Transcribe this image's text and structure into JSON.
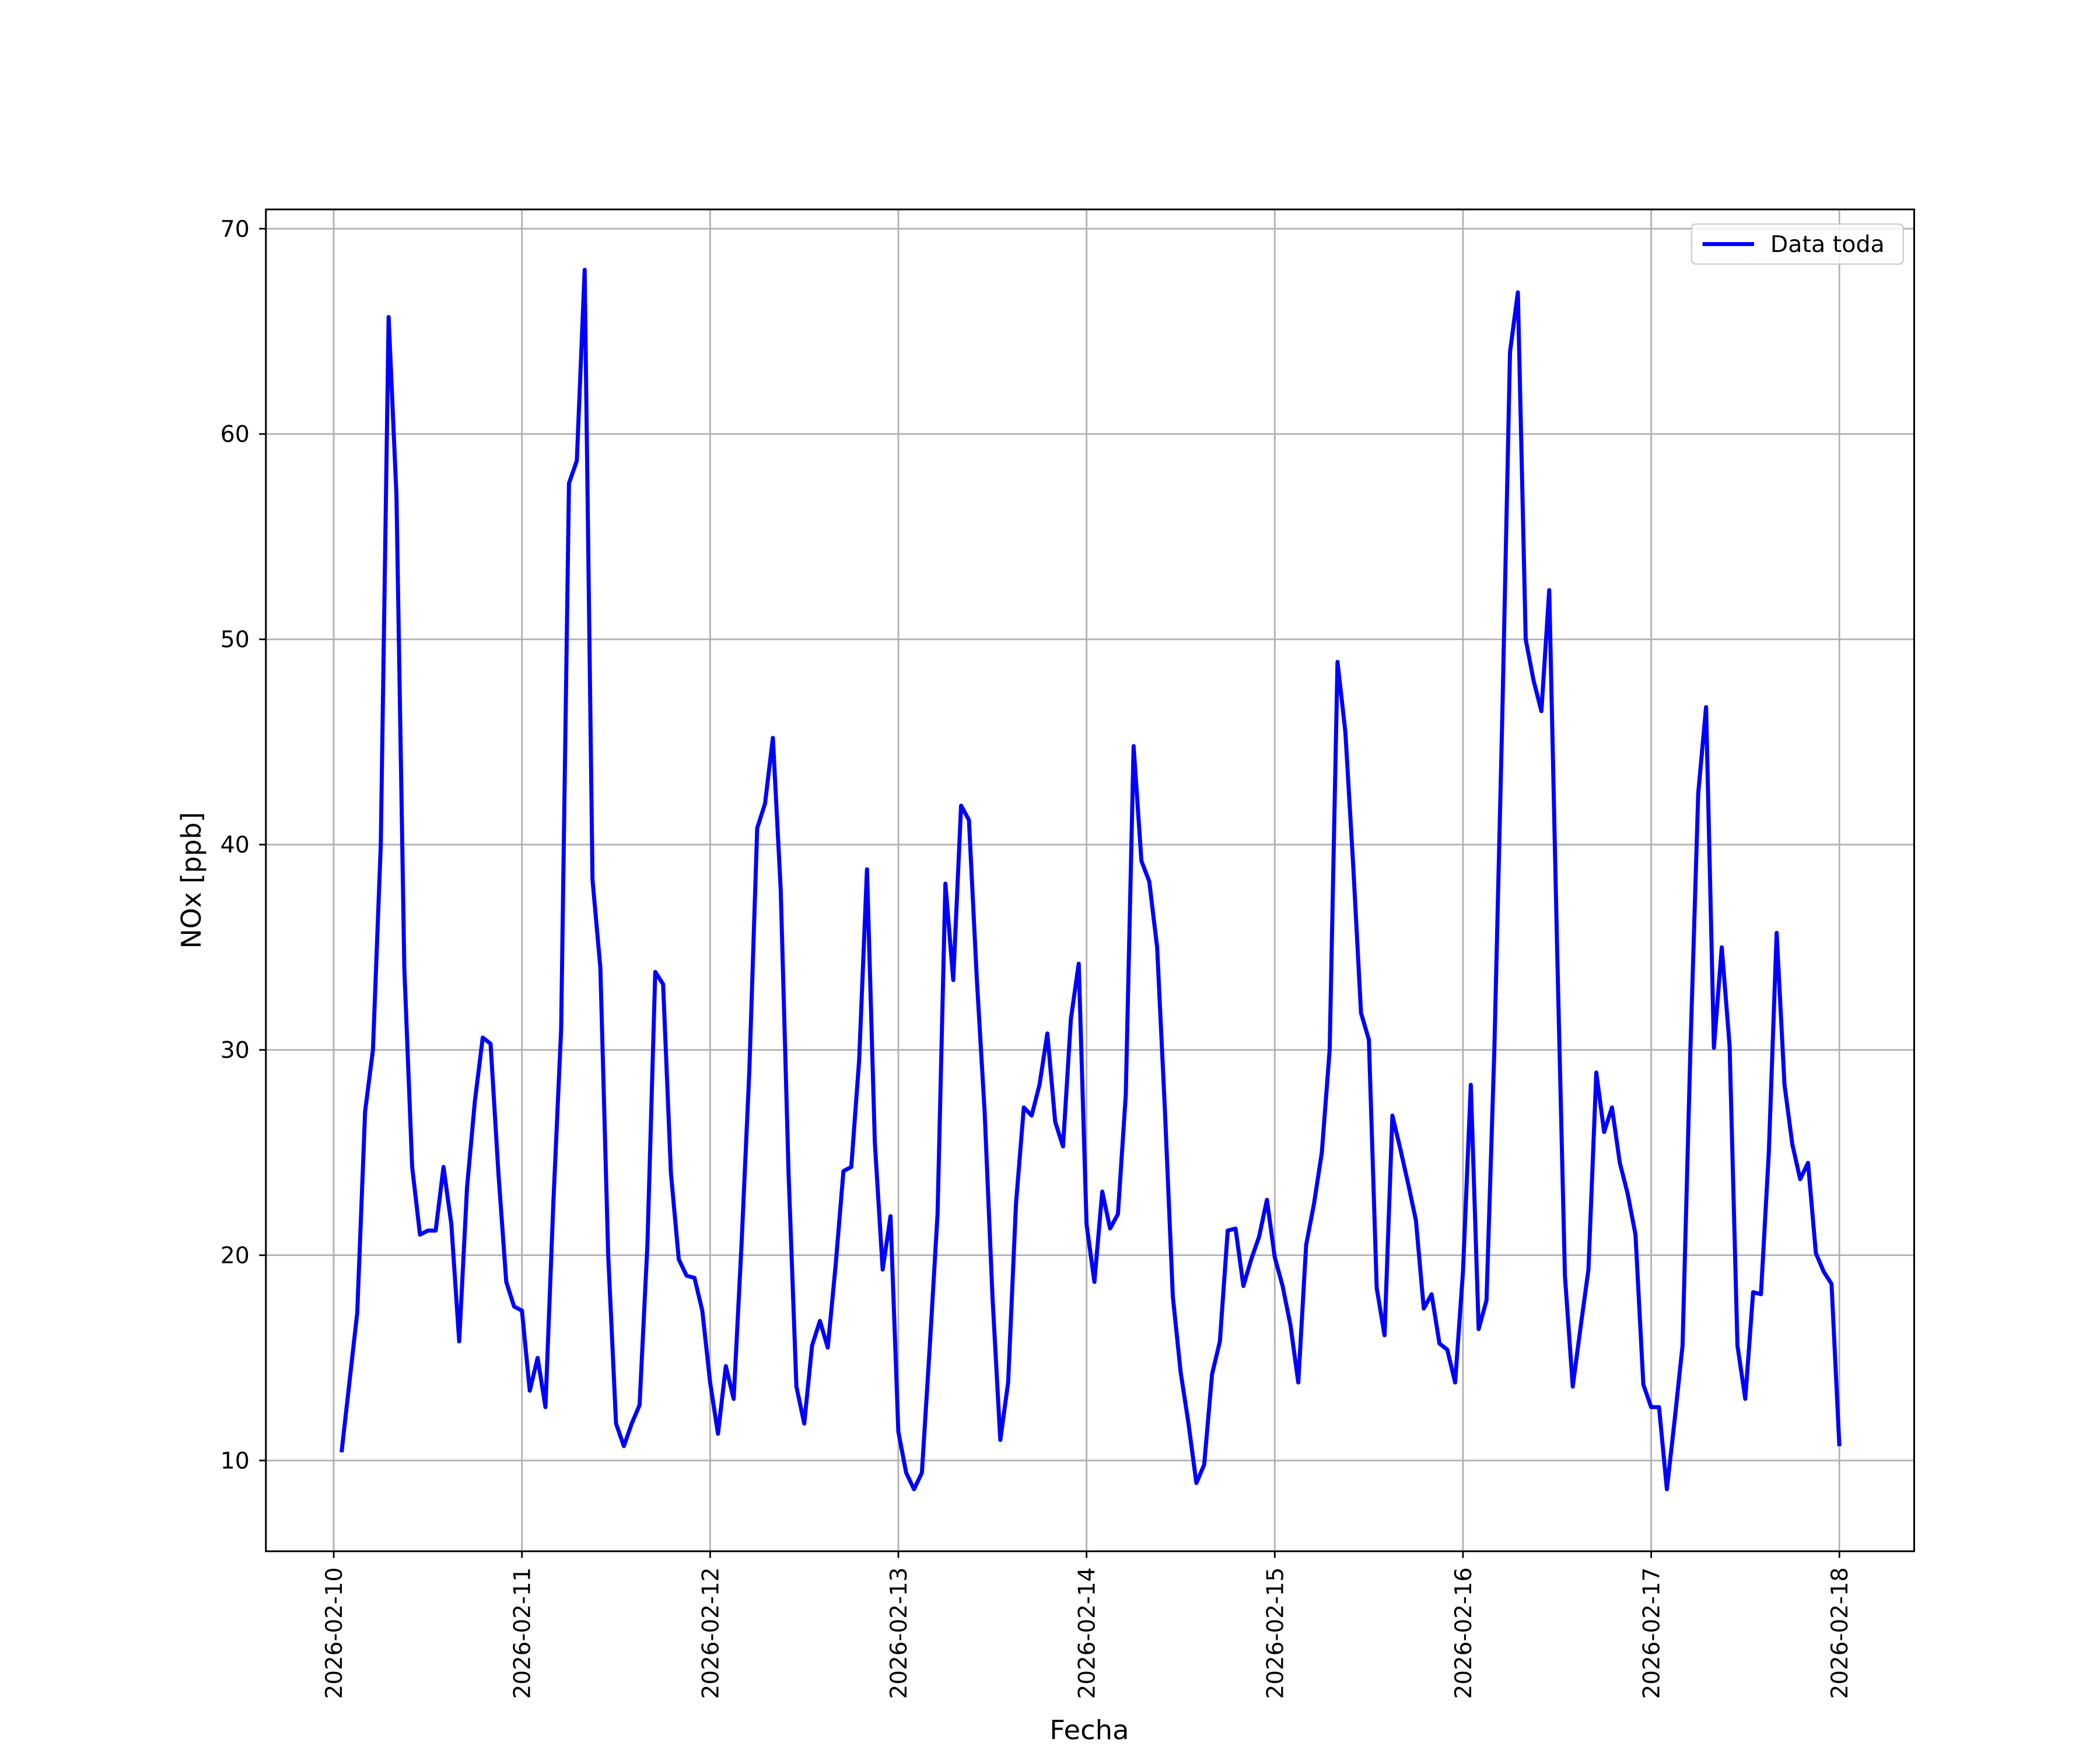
{
  "chart_data": {
    "type": "line",
    "xlabel": "Fecha",
    "ylabel": "NOx [ppb]",
    "legend": "upper right",
    "grid": true,
    "xlim": [
      "2026-02-09T15:21",
      "2026-02-18T09:32"
    ],
    "ylim": [
      5.58,
      70.94
    ],
    "yticks": [
      10,
      20,
      30,
      40,
      50,
      60,
      70
    ],
    "xticks": [
      "2026-02-10",
      "2026-02-11",
      "2026-02-12",
      "2026-02-13",
      "2026-02-14",
      "2026-02-15",
      "2026-02-16",
      "2026-02-17",
      "2026-02-18"
    ],
    "x": [
      "2026-02-10T01:00",
      "2026-02-10T02:00",
      "2026-02-10T03:00",
      "2026-02-10T04:00",
      "2026-02-10T05:00",
      "2026-02-10T06:00",
      "2026-02-10T07:00",
      "2026-02-10T08:00",
      "2026-02-10T09:00",
      "2026-02-10T10:00",
      "2026-02-10T11:00",
      "2026-02-10T12:00",
      "2026-02-10T13:00",
      "2026-02-10T14:00",
      "2026-02-10T15:00",
      "2026-02-10T16:00",
      "2026-02-10T17:00",
      "2026-02-10T18:00",
      "2026-02-10T19:00",
      "2026-02-10T20:00",
      "2026-02-10T21:00",
      "2026-02-10T22:00",
      "2026-02-10T23:00",
      "2026-02-11T00:00",
      "2026-02-11T01:00",
      "2026-02-11T02:00",
      "2026-02-11T03:00",
      "2026-02-11T04:00",
      "2026-02-11T05:00",
      "2026-02-11T06:00",
      "2026-02-11T07:00",
      "2026-02-11T08:00",
      "2026-02-11T09:00",
      "2026-02-11T10:00",
      "2026-02-11T11:00",
      "2026-02-11T12:00",
      "2026-02-11T13:00",
      "2026-02-11T14:00",
      "2026-02-11T15:00",
      "2026-02-11T16:00",
      "2026-02-11T17:00",
      "2026-02-11T18:00",
      "2026-02-11T19:00",
      "2026-02-11T20:00",
      "2026-02-11T21:00",
      "2026-02-11T22:00",
      "2026-02-11T23:00",
      "2026-02-12T00:00",
      "2026-02-12T01:00",
      "2026-02-12T02:00",
      "2026-02-12T03:00",
      "2026-02-12T04:00",
      "2026-02-12T05:00",
      "2026-02-12T06:00",
      "2026-02-12T07:00",
      "2026-02-12T08:00",
      "2026-02-12T09:00",
      "2026-02-12T10:00",
      "2026-02-12T11:00",
      "2026-02-12T12:00",
      "2026-02-12T13:00",
      "2026-02-12T14:00",
      "2026-02-12T15:00",
      "2026-02-12T16:00",
      "2026-02-12T17:00",
      "2026-02-12T18:00",
      "2026-02-12T19:00",
      "2026-02-12T20:00",
      "2026-02-12T21:00",
      "2026-02-12T22:00",
      "2026-02-12T23:00",
      "2026-02-13T00:00",
      "2026-02-13T01:00",
      "2026-02-13T02:00",
      "2026-02-13T03:00",
      "2026-02-13T04:00",
      "2026-02-13T05:00",
      "2026-02-13T06:00",
      "2026-02-13T07:00",
      "2026-02-13T08:00",
      "2026-02-13T09:00",
      "2026-02-13T10:00",
      "2026-02-13T11:00",
      "2026-02-13T12:00",
      "2026-02-13T13:00",
      "2026-02-13T14:00",
      "2026-02-13T15:00",
      "2026-02-13T16:00",
      "2026-02-13T17:00",
      "2026-02-13T18:00",
      "2026-02-13T19:00",
      "2026-02-13T20:00",
      "2026-02-13T21:00",
      "2026-02-13T22:00",
      "2026-02-13T23:00",
      "2026-02-14T00:00",
      "2026-02-14T01:00",
      "2026-02-14T02:00",
      "2026-02-14T03:00",
      "2026-02-14T04:00",
      "2026-02-14T05:00",
      "2026-02-14T06:00",
      "2026-02-14T07:00",
      "2026-02-14T08:00",
      "2026-02-14T09:00",
      "2026-02-14T10:00",
      "2026-02-14T11:00",
      "2026-02-14T12:00",
      "2026-02-14T13:00",
      "2026-02-14T14:00",
      "2026-02-14T15:00",
      "2026-02-14T16:00",
      "2026-02-14T17:00",
      "2026-02-14T18:00",
      "2026-02-14T19:00",
      "2026-02-14T20:00",
      "2026-02-14T21:00",
      "2026-02-14T22:00",
      "2026-02-14T23:00",
      "2026-02-15T00:00",
      "2026-02-15T01:00",
      "2026-02-15T02:00",
      "2026-02-15T03:00",
      "2026-02-15T04:00",
      "2026-02-15T05:00",
      "2026-02-15T06:00",
      "2026-02-15T07:00",
      "2026-02-15T08:00",
      "2026-02-15T09:00",
      "2026-02-15T10:00",
      "2026-02-15T11:00",
      "2026-02-15T12:00",
      "2026-02-15T13:00",
      "2026-02-15T14:00",
      "2026-02-15T15:00",
      "2026-02-15T16:00",
      "2026-02-15T17:00",
      "2026-02-15T18:00",
      "2026-02-15T19:00",
      "2026-02-15T20:00",
      "2026-02-15T21:00",
      "2026-02-15T22:00",
      "2026-02-15T23:00",
      "2026-02-16T00:00",
      "2026-02-16T01:00",
      "2026-02-16T02:00",
      "2026-02-16T03:00",
      "2026-02-16T04:00",
      "2026-02-16T05:00",
      "2026-02-16T06:00",
      "2026-02-16T07:00",
      "2026-02-16T08:00",
      "2026-02-16T09:00",
      "2026-02-16T10:00",
      "2026-02-16T11:00",
      "2026-02-16T12:00",
      "2026-02-16T13:00",
      "2026-02-16T14:00",
      "2026-02-16T15:00",
      "2026-02-16T16:00",
      "2026-02-16T17:00",
      "2026-02-16T18:00",
      "2026-02-16T19:00",
      "2026-02-16T20:00",
      "2026-02-16T21:00",
      "2026-02-16T22:00",
      "2026-02-16T23:00",
      "2026-02-17T00:00",
      "2026-02-17T01:00",
      "2026-02-17T02:00",
      "2026-02-17T03:00",
      "2026-02-17T04:00",
      "2026-02-17T05:00",
      "2026-02-17T06:00",
      "2026-02-17T07:00",
      "2026-02-17T08:00",
      "2026-02-17T09:00",
      "2026-02-17T10:00",
      "2026-02-17T11:00",
      "2026-02-17T12:00",
      "2026-02-17T13:00",
      "2026-02-17T14:00",
      "2026-02-17T15:00",
      "2026-02-17T16:00",
      "2026-02-17T17:00",
      "2026-02-17T18:00",
      "2026-02-17T19:00",
      "2026-02-17T20:00",
      "2026-02-17T21:00",
      "2026-02-17T22:00",
      "2026-02-17T23:00",
      "2026-02-18T00:00"
    ],
    "series": [
      {
        "name": "Data toda",
        "color": "#0000ff",
        "values": [
          10.4,
          13.8,
          17.2,
          27,
          30,
          40,
          65.7,
          57,
          34,
          24.3,
          21,
          21.2,
          21.2,
          24.3,
          21.5,
          15.8,
          23.3,
          27.5,
          30.6,
          30.3,
          24,
          18.7,
          17.5,
          17.3,
          13.4,
          15,
          12.6,
          22.5,
          31,
          57.6,
          58.7,
          68,
          38.3,
          34,
          20,
          11.8,
          10.7,
          11.8,
          12.7,
          20.5,
          33.8,
          33.2,
          24,
          19.8,
          19,
          18.9,
          17.3,
          13.8,
          11.3,
          14.6,
          13,
          20.5,
          29,
          40.8,
          42,
          45.2,
          37.8,
          24,
          13.6,
          11.8,
          15.6,
          16.8,
          15.5,
          19.5,
          24.1,
          24.3,
          29.5,
          38.8,
          25.5,
          19.3,
          21.9,
          11.4,
          9.4,
          8.6,
          9.4,
          15.5,
          22,
          38.1,
          33.4,
          41.9,
          41.2,
          33.5,
          27,
          18,
          11,
          13.8,
          22.5,
          27.2,
          26.8,
          28.3,
          30.8,
          26.5,
          25.3,
          31.5,
          34.2,
          21.5,
          18.7,
          23.1,
          21.3,
          22,
          27.8,
          44.8,
          39.2,
          38.2,
          35,
          27,
          18,
          14.3,
          11.8,
          8.9,
          9.8,
          14.2,
          15.8,
          21.2,
          21.3,
          18.5,
          19.8,
          20.9,
          22.7,
          19.9,
          18.5,
          16.6,
          13.8,
          20.5,
          22.5,
          25,
          30,
          48.9,
          45.5,
          39,
          31.8,
          30.5,
          18.4,
          16.1,
          26.8,
          25.2,
          23.5,
          21.7,
          17.4,
          18.1,
          15.7,
          15.4,
          13.8,
          19.2,
          28.3,
          16.4,
          17.8,
          30,
          46,
          64,
          66.9,
          50,
          48,
          46.5,
          52.4,
          35,
          19,
          13.6,
          16.5,
          19.3,
          28.9,
          26,
          27.2,
          24.5,
          23,
          21,
          13.7,
          12.6,
          12.6,
          8.6,
          12,
          15.6,
          30,
          42.5,
          46.7,
          30.1,
          35,
          30.2,
          15.6,
          13,
          18.2,
          18.1,
          25,
          35.7,
          28.3,
          25.4,
          23.7,
          24.5,
          20.1,
          19.2,
          18.6,
          10.7
        ]
      }
    ]
  }
}
